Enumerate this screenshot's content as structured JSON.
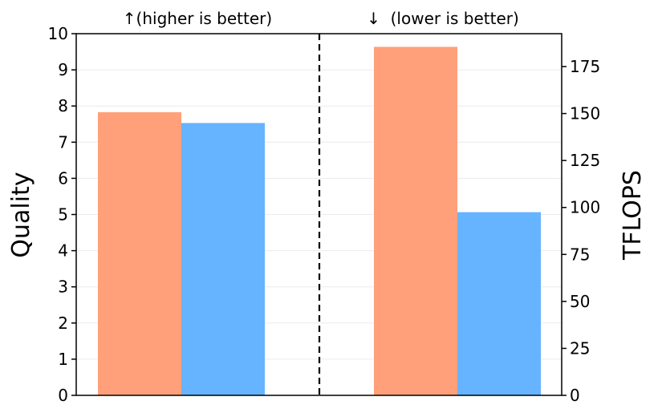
{
  "chart_data": {
    "type": "bar",
    "left_axis": {
      "label": "Quality",
      "ylim": [
        0,
        10
      ],
      "ticks": [
        "0",
        "1",
        "2",
        "3",
        "4",
        "5",
        "6",
        "7",
        "8",
        "9",
        "10"
      ]
    },
    "right_axis": {
      "label": "TFLOPS",
      "ylim": [
        0,
        192.5
      ],
      "ticks": [
        "0",
        "25",
        "50",
        "75",
        "100",
        "125",
        "150",
        "175"
      ]
    },
    "annotations": {
      "left": "↑(higher is better)",
      "right": "↓  (lower is better)"
    },
    "grid": true,
    "groups": [
      {
        "axis": "left",
        "values": [
          7.83,
          7.53
        ]
      },
      {
        "axis": "right",
        "values": [
          185.5,
          97.5
        ]
      }
    ],
    "colors": [
      "#FFA07A",
      "#66B3FF"
    ],
    "divider_style": "dashed"
  }
}
